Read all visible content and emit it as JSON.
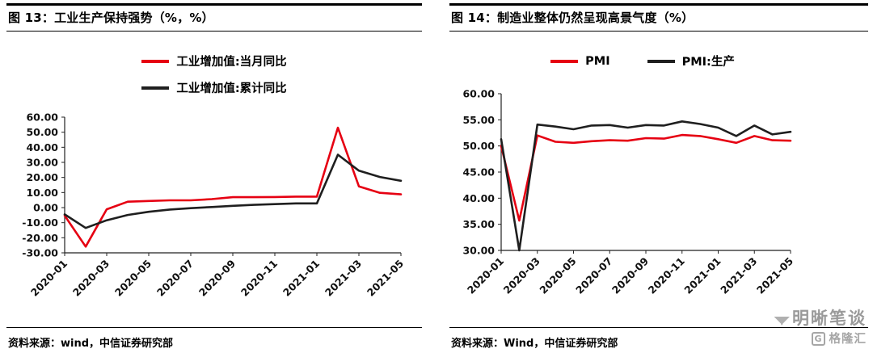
{
  "chart_data": [
    {
      "type": "line",
      "title": "图 13：工业生产保持强势（%，%）",
      "source": "资料来源：wind，中信证券研究部",
      "x": [
        "2020-01",
        "2020-02",
        "2020-03",
        "2020-04",
        "2020-05",
        "2020-06",
        "2020-07",
        "2020-08",
        "2020-09",
        "2020-10",
        "2020-11",
        "2020-12",
        "2021-01",
        "2021-02",
        "2021-03",
        "2021-04",
        "2021-05"
      ],
      "x_tick_labels": [
        "2020-01",
        "2020-03",
        "2020-05",
        "2020-07",
        "2020-09",
        "2020-11",
        "2021-01",
        "2021-03",
        "2021-05"
      ],
      "ylim": [
        -30,
        60
      ],
      "ytick_step": 10,
      "ytick_decimals": 2,
      "grid": false,
      "legend_position": "top",
      "series": [
        {
          "name": "工业增加值:当月同比",
          "color": "#e60012",
          "values": [
            -5.3,
            -25.9,
            -1.1,
            3.9,
            4.4,
            4.8,
            4.8,
            5.6,
            6.9,
            6.9,
            7.0,
            7.3,
            7.3,
            53.0,
            14.1,
            9.8,
            8.8
          ]
        },
        {
          "name": "工业增加值:累计同比",
          "color": "#1f1f1f",
          "values": [
            -4.5,
            -13.5,
            -8.4,
            -4.9,
            -2.8,
            -1.3,
            -0.4,
            0.4,
            1.2,
            1.8,
            2.3,
            2.8,
            2.8,
            35.1,
            24.5,
            20.3,
            17.8
          ]
        }
      ]
    },
    {
      "type": "line",
      "title": "图 14：制造业整体仍然呈现高景气度（%）",
      "source": "资料来源：Wind，中信证券研究部",
      "x": [
        "2020-01",
        "2020-02",
        "2020-03",
        "2020-04",
        "2020-05",
        "2020-06",
        "2020-07",
        "2020-08",
        "2020-09",
        "2020-10",
        "2020-11",
        "2020-12",
        "2021-01",
        "2021-02",
        "2021-03",
        "2021-04",
        "2021-05"
      ],
      "x_tick_labels": [
        "2020-01",
        "2020-03",
        "2020-05",
        "2020-07",
        "2020-09",
        "2020-11",
        "2021-01",
        "2021-03",
        "2021-05"
      ],
      "ylim": [
        30,
        60
      ],
      "ytick_step": 5,
      "ytick_decimals": 2,
      "grid": false,
      "legend_position": "top",
      "series": [
        {
          "name": "PMI",
          "color": "#e60012",
          "values": [
            50.0,
            35.7,
            52.0,
            50.8,
            50.6,
            50.9,
            51.1,
            51.0,
            51.5,
            51.4,
            52.1,
            51.9,
            51.3,
            50.6,
            51.9,
            51.1,
            51.0
          ]
        },
        {
          "name": "PMI:生产",
          "color": "#1f1f1f",
          "values": [
            51.3,
            27.8,
            54.1,
            53.7,
            53.2,
            53.9,
            54.0,
            53.5,
            54.0,
            53.9,
            54.7,
            54.2,
            53.5,
            51.9,
            53.9,
            52.2,
            52.7
          ]
        }
      ]
    }
  ],
  "watermark": {
    "icon_glyph": "◥◤",
    "title": "明晰笔谈",
    "brand_icon_letter": "G",
    "brand_name": "格隆汇"
  }
}
